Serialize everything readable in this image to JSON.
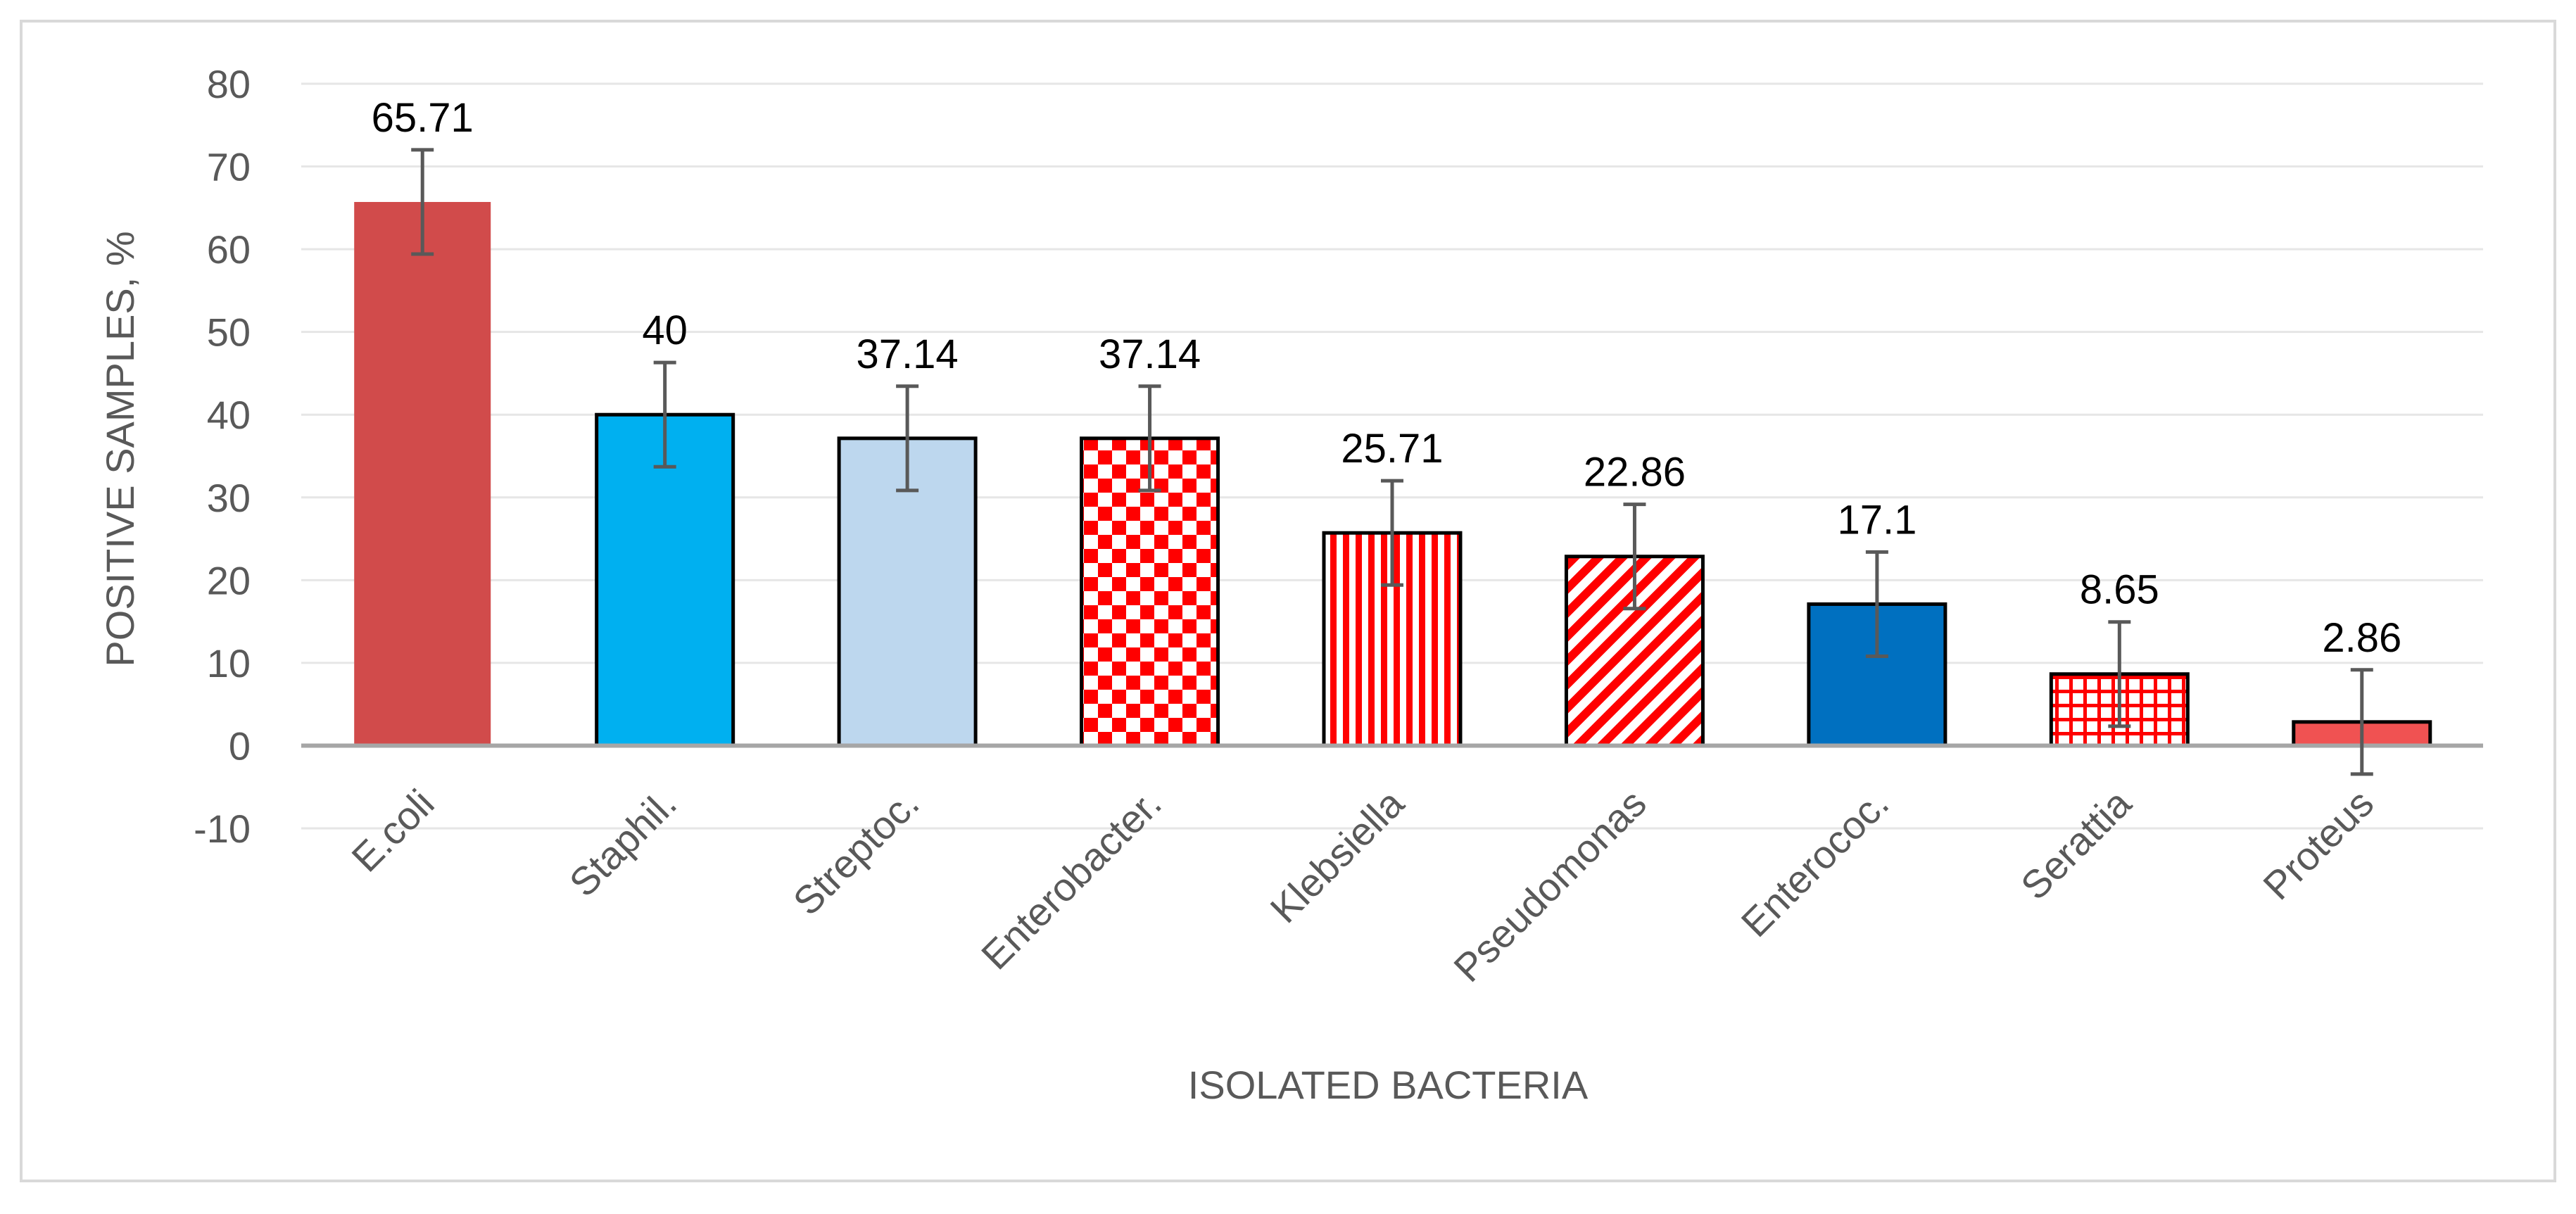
{
  "chart_data": {
    "type": "bar",
    "xlabel": "ISOLATED BACTERIA",
    "ylabel": "POSITIVE SAMPLES, %",
    "ylim": [
      -10,
      80
    ],
    "yticks": [
      -10,
      0,
      10,
      20,
      30,
      40,
      50,
      60,
      70,
      80
    ],
    "grid": true,
    "categories": [
      "E.coli",
      "Staphil.",
      "Streptoc.",
      "Enterobacter.",
      "Klebsiella",
      "Pseudomonas",
      "Enterococ.",
      "Serattia",
      "Proteus"
    ],
    "values": [
      65.71,
      40,
      37.14,
      37.14,
      25.71,
      22.86,
      17.1,
      8.65,
      2.86
    ],
    "value_labels": [
      "65.71",
      "40",
      "37.14",
      "37.14",
      "25.71",
      "22.86",
      "17.1",
      "8.65",
      "2.86"
    ],
    "error": [
      6.3,
      6.3,
      6.3,
      6.3,
      6.3,
      6.3,
      6.3,
      6.3,
      6.3
    ],
    "bar_styles": [
      {
        "fill": "solid",
        "color": "#d14b4b",
        "outline": "none"
      },
      {
        "fill": "solid",
        "color": "#00b0f0",
        "outline": "#000000"
      },
      {
        "fill": "solid",
        "color": "#bdd7ee",
        "outline": "#000000"
      },
      {
        "fill": "checker",
        "color": "#ff0000",
        "outline": "#000000"
      },
      {
        "fill": "vertical-stripes",
        "color": "#ff0000",
        "outline": "#000000"
      },
      {
        "fill": "diagonal-stripes",
        "color": "#ff0000",
        "outline": "#000000"
      },
      {
        "fill": "solid",
        "color": "#0070c0",
        "outline": "#000000"
      },
      {
        "fill": "grid",
        "color": "#ff0000",
        "outline": "#000000"
      },
      {
        "fill": "solid",
        "color": "#f05252",
        "outline": "#000000"
      }
    ],
    "colors": {
      "gridline": "#e6e6e6",
      "zero_axis": "#a6a6a6",
      "error_bar": "#595959",
      "frame_border": "#d9d9d9"
    }
  }
}
